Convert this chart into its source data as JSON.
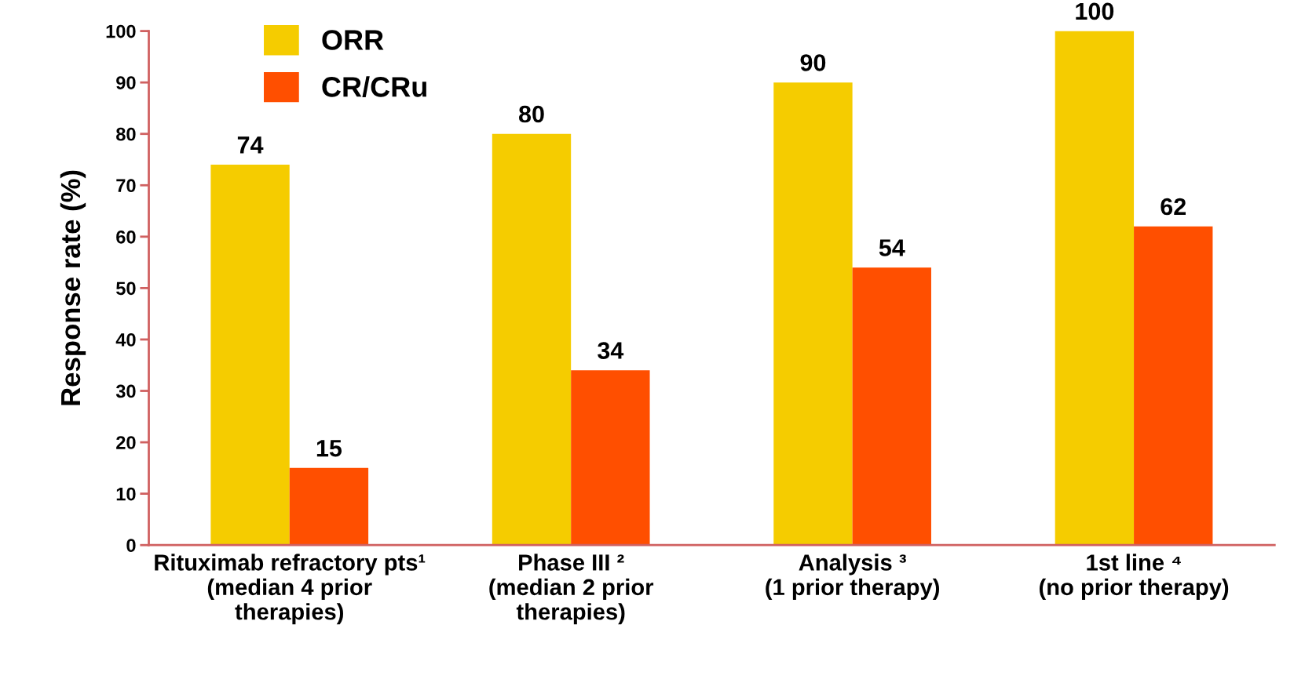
{
  "chart_data": {
    "type": "bar",
    "ylabel": "Response rate (%)",
    "categories": [
      "Rituximab refractory pts¹\n(median 4 prior\ntherapies)",
      "Phase III ²\n(median 2 prior\ntherapies)",
      "Analysis ³\n(1 prior therapy)",
      "1st line ⁴\n(no prior therapy)"
    ],
    "series": [
      {
        "name": "ORR",
        "color": "#f5cc00",
        "values": [
          74,
          80,
          90,
          100
        ]
      },
      {
        "name": "CR/CRu",
        "color": "#ff4f00",
        "values": [
          15,
          34,
          54,
          62
        ]
      }
    ],
    "ylim": [
      0,
      100
    ],
    "yticks": [
      0,
      10,
      20,
      30,
      40,
      50,
      60,
      70,
      80,
      90,
      100
    ],
    "data_labels": true,
    "grid": false,
    "legend": "top left"
  }
}
